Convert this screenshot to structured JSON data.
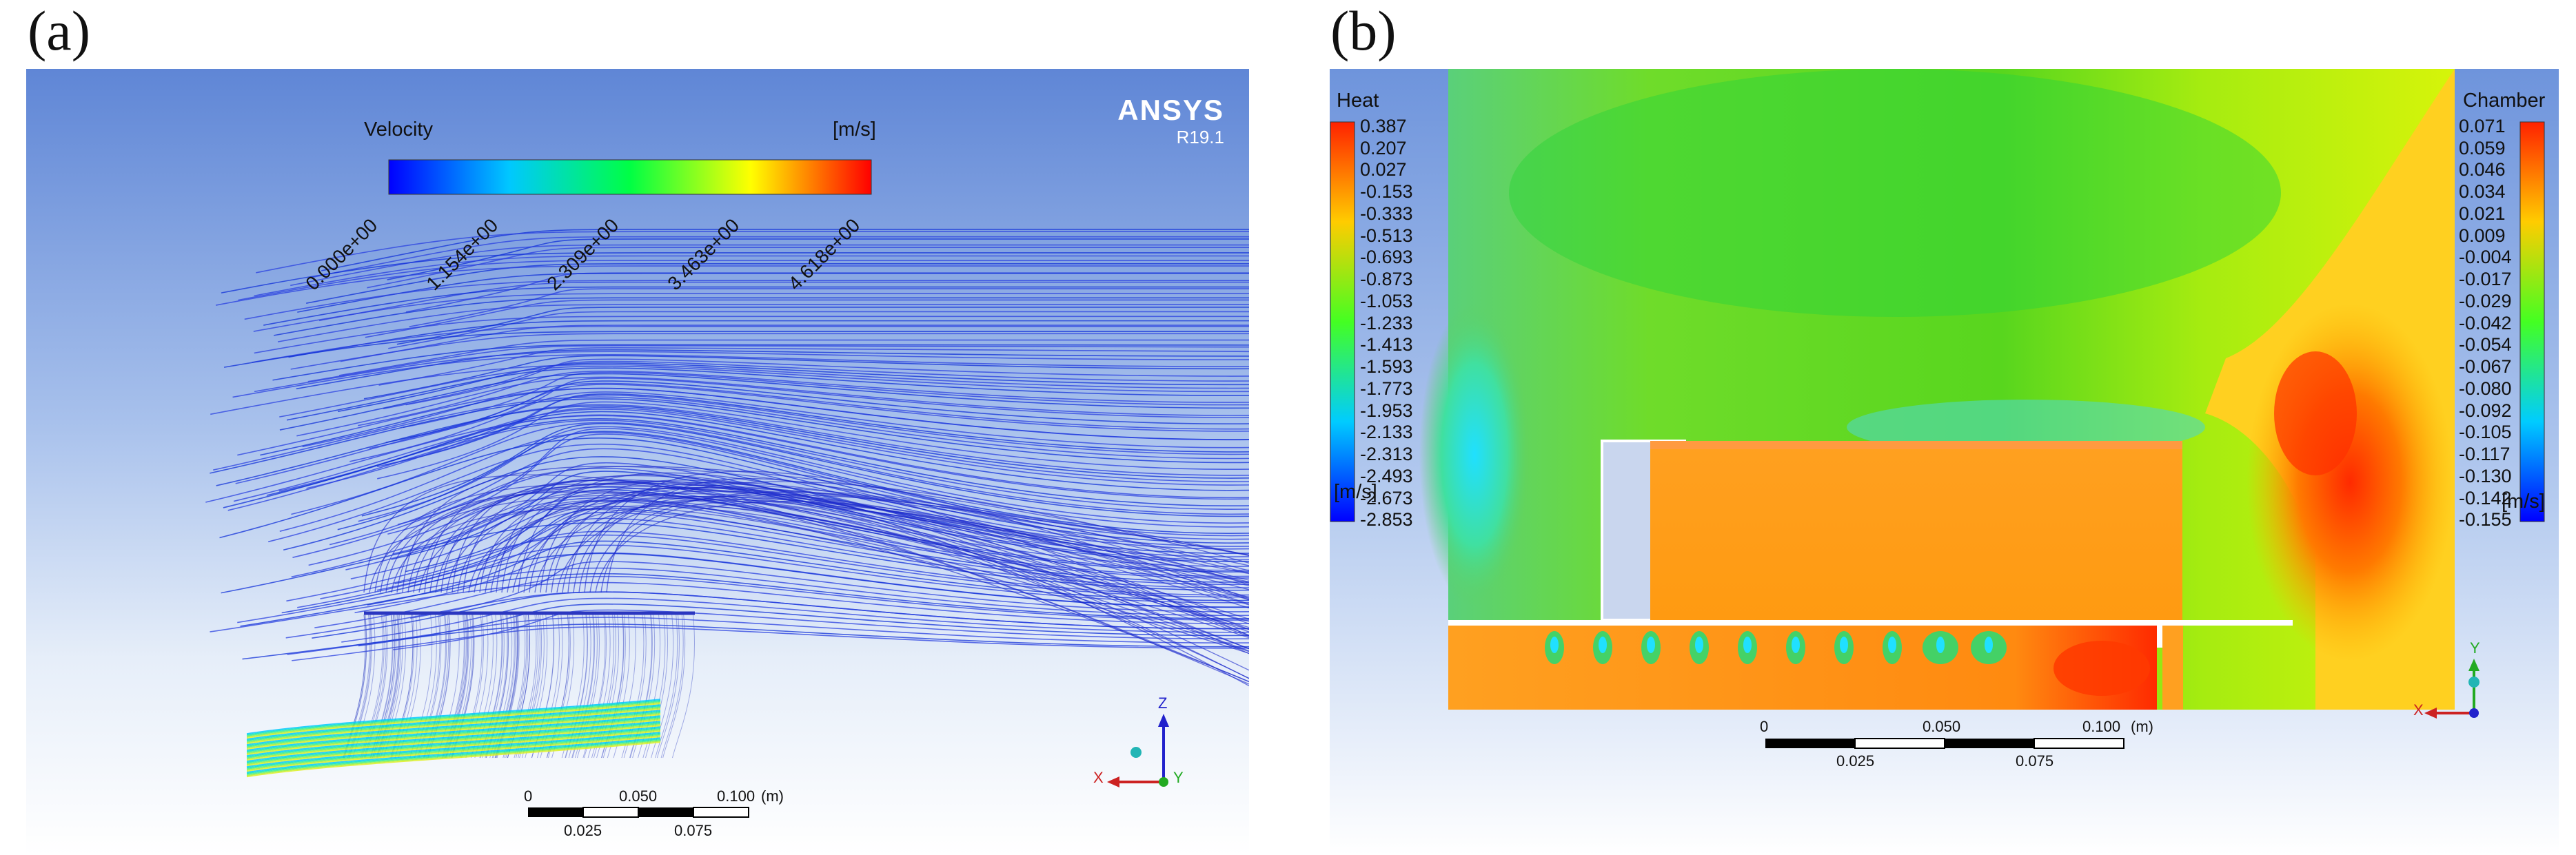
{
  "panels": {
    "a": {
      "label": "(a)",
      "logo": {
        "brand": "ANSYS",
        "version": "R19.1"
      },
      "legend": {
        "title": "Velocity",
        "unit": "[m/s]",
        "colors": [
          "#0000ff",
          "#00c8ff",
          "#00ff44",
          "#ffff00",
          "#ff0000"
        ],
        "ticks": [
          "0.000e+00",
          "1.154e+00",
          "2.309e+00",
          "3.463e+00",
          "4.618e+00"
        ]
      },
      "scale_bar": {
        "top": [
          "0",
          "0.050",
          "0.100"
        ],
        "unit": "(m)",
        "bottom": [
          "0.025",
          "0.075"
        ]
      },
      "axes": {
        "x": "X",
        "z": "Z",
        "y": "Y"
      }
    },
    "b": {
      "label": "(b)",
      "legend_left": {
        "title": "Heat",
        "unit": "[m/s]",
        "values": [
          "0.387",
          "0.207",
          "0.027",
          "-0.153",
          "-0.333",
          "-0.513",
          "-0.693",
          "-0.873",
          "-1.053",
          "-1.233",
          "-1.413",
          "-1.593",
          "-1.773",
          "-1.953",
          "-2.133",
          "-2.313",
          "-2.493",
          "-2.673",
          "-2.853"
        ]
      },
      "legend_right": {
        "title": "Chamber",
        "unit": "[m/s]",
        "values": [
          "0.071",
          "0.059",
          "0.046",
          "0.034",
          "0.021",
          "0.009",
          "-0.004",
          "-0.017",
          "-0.029",
          "-0.042",
          "-0.054",
          "-0.067",
          "-0.080",
          "-0.092",
          "-0.105",
          "-0.117",
          "-0.130",
          "-0.142",
          "-0.155"
        ]
      },
      "scale_bar": {
        "top": [
          "0",
          "0.050",
          "0.100"
        ],
        "unit": "(m)",
        "bottom": [
          "0.025",
          "0.075"
        ]
      },
      "axes": {
        "x": "X",
        "y": "Y"
      }
    }
  }
}
